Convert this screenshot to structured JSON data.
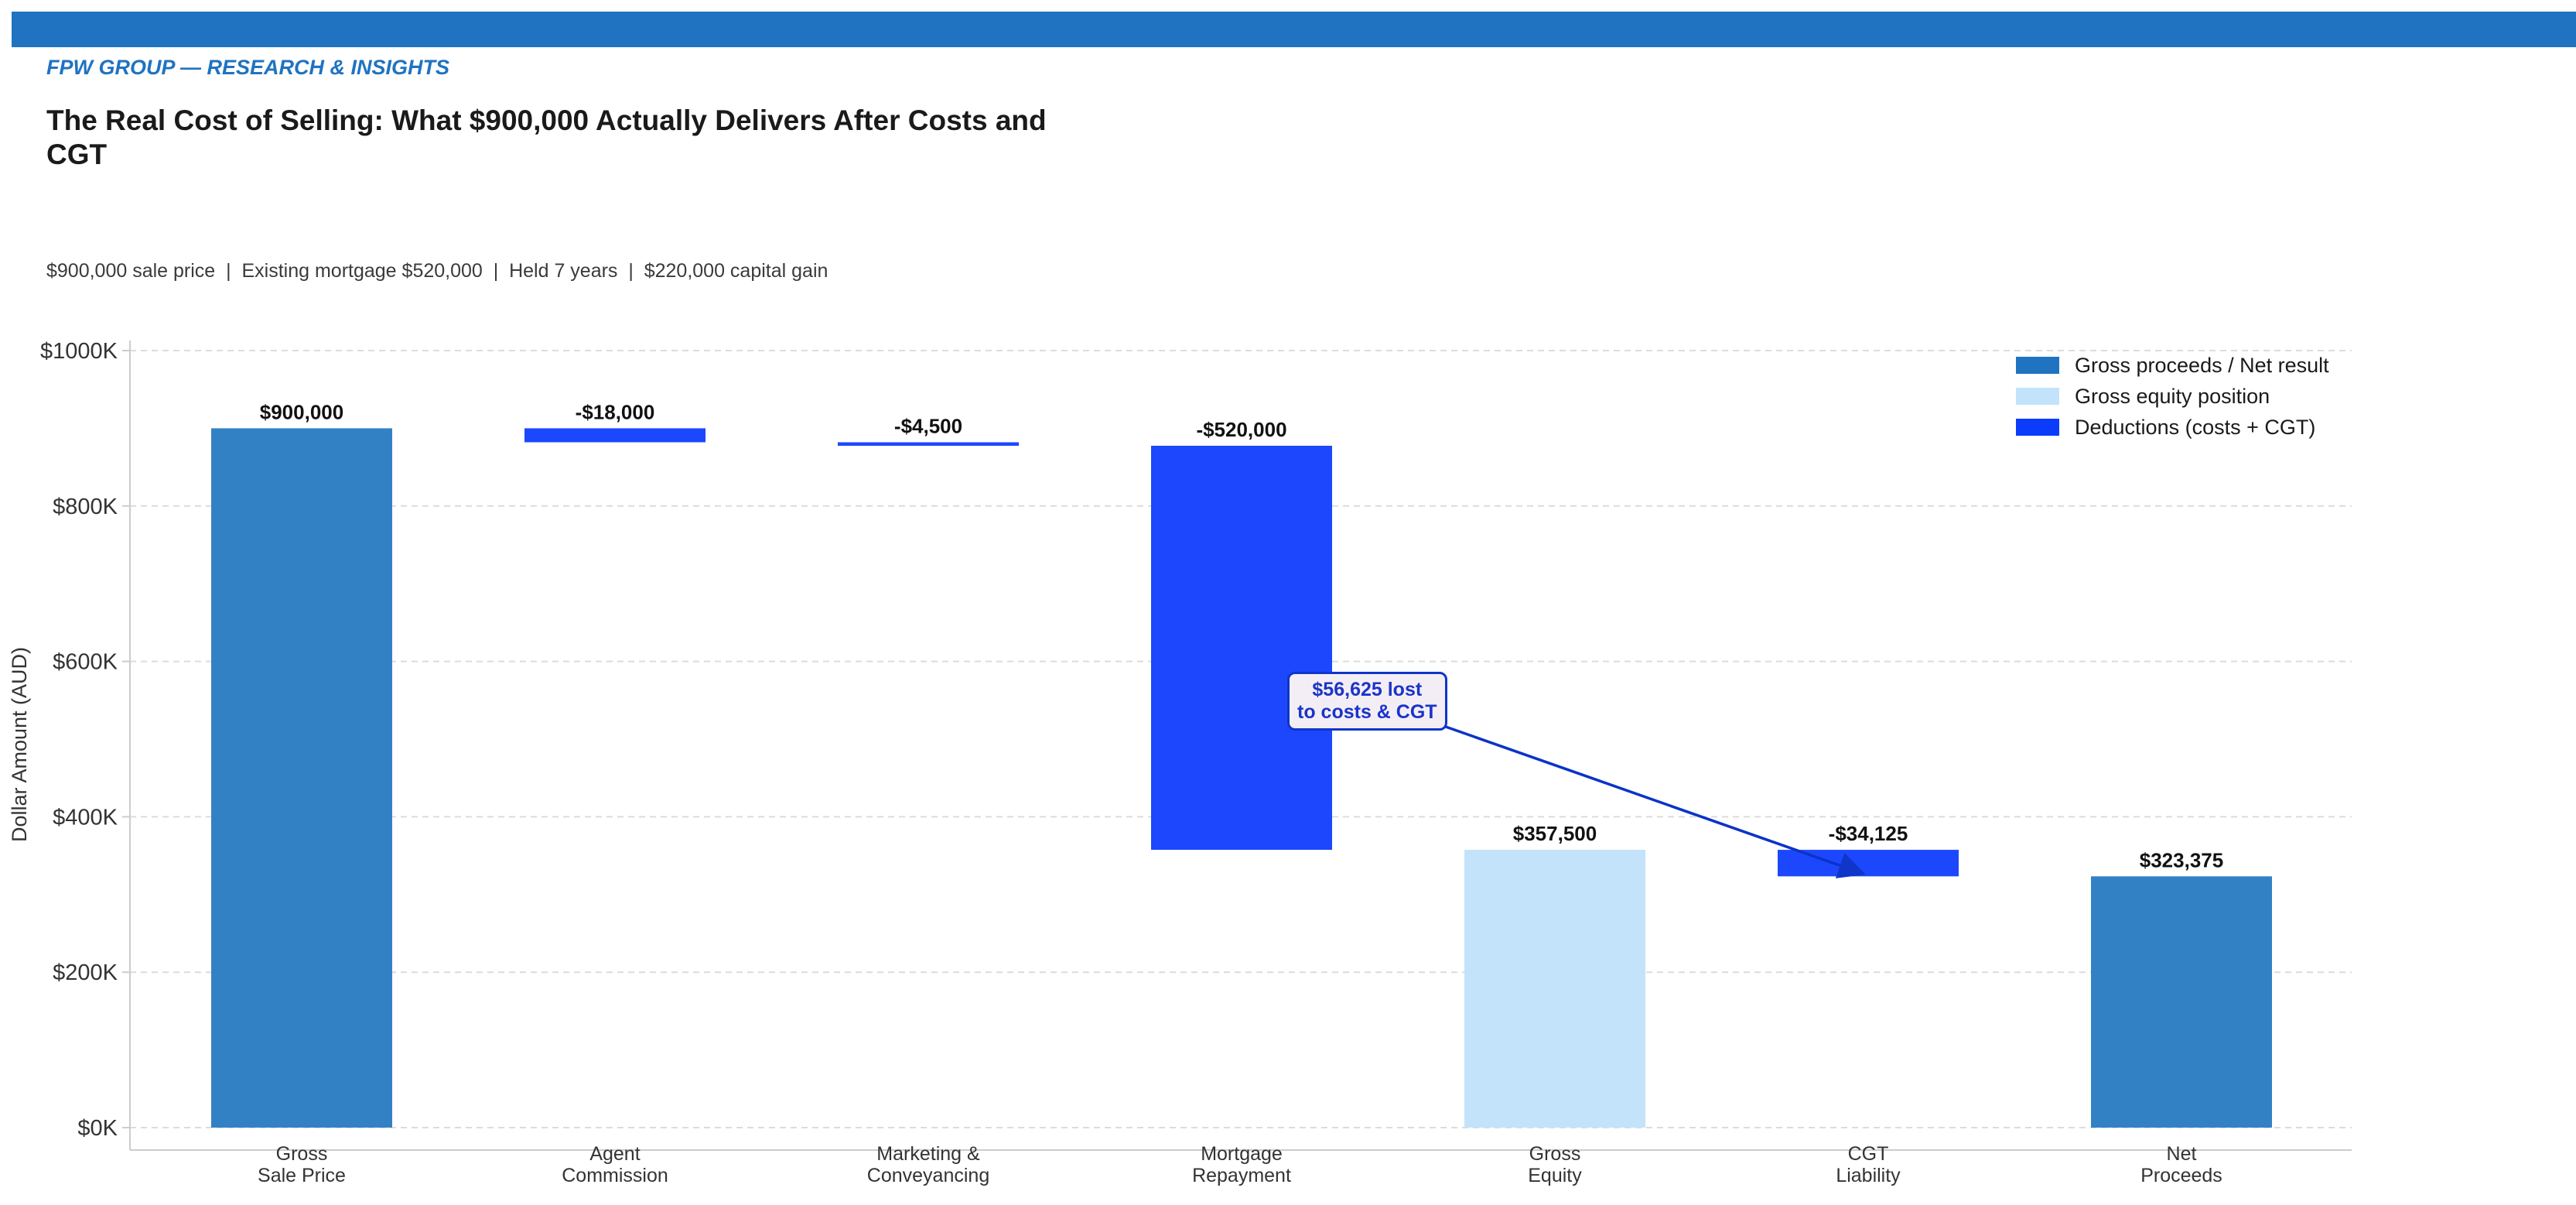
{
  "header": {
    "brand": "FPW GROUP — RESEARCH & INSIGHTS",
    "title": "The Real Cost of Selling: What $900,000 Actually Delivers After Costs and CGT",
    "subtitle": "$900,000 sale price  |  Existing mortgage $520,000  |  Held 7 years  |  $220,000 capital gain"
  },
  "colors": {
    "total": "#3381c5",
    "equity": "#c3e3fb",
    "deduction": "#1c47fc",
    "accent": "#1f73c1",
    "annotation": "#1035c9"
  },
  "chart_data": {
    "type": "waterfall",
    "ylabel": "Dollar Amount (AUD)",
    "ylim": [
      0,
      1000000
    ],
    "yticks": [
      0,
      200000,
      400000,
      600000,
      800000,
      1000000
    ],
    "ytick_labels": [
      "$0K",
      "$200K",
      "$400K",
      "$600K",
      "$800K",
      "$1000K"
    ],
    "grid": true,
    "legend_position": "top-right",
    "categories": [
      [
        "Gross",
        "Sale Price"
      ],
      [
        "Agent",
        "Commission"
      ],
      [
        "Marketing &",
        "Conveyancing"
      ],
      [
        "Mortgage",
        "Repayment"
      ],
      [
        "Gross",
        "Equity"
      ],
      [
        "CGT",
        "Liability"
      ],
      [
        "Net",
        "Proceeds"
      ]
    ],
    "bars": [
      {
        "kind": "total",
        "bottom": 0,
        "top": 900000,
        "label": "$900,000"
      },
      {
        "kind": "deduction",
        "bottom": 882000,
        "top": 900000,
        "label": "-$18,000"
      },
      {
        "kind": "deduction",
        "bottom": 877500,
        "top": 882000,
        "label": "-$4,500"
      },
      {
        "kind": "deduction",
        "bottom": 357500,
        "top": 877500,
        "label": "-$520,000"
      },
      {
        "kind": "equity",
        "bottom": 0,
        "top": 357500,
        "label": "$357,500"
      },
      {
        "kind": "deduction",
        "bottom": 323375,
        "top": 357500,
        "label": "-$34,125"
      },
      {
        "kind": "total",
        "bottom": 0,
        "top": 323375,
        "label": "$323,375"
      }
    ],
    "legend": [
      {
        "kind": "total",
        "label": "Gross proceeds / Net result"
      },
      {
        "kind": "equity",
        "label": "Gross equity position"
      },
      {
        "kind": "deduction",
        "label": "Deductions (costs + CGT)"
      }
    ],
    "annotation": {
      "lines": [
        "$56,625 lost",
        "to costs & CGT"
      ],
      "target_category_index": 5,
      "target_y": 340000
    }
  }
}
